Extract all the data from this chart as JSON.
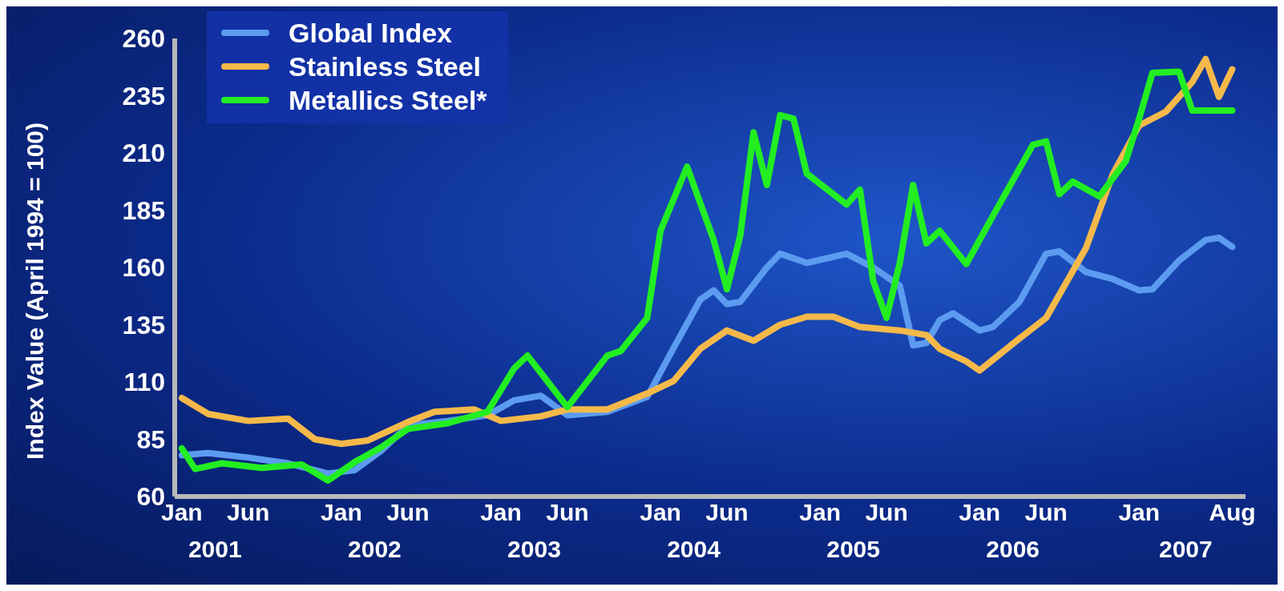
{
  "chart_data": {
    "type": "line",
    "ylabel": "Index Value (April 1994 = 100)",
    "xlim": [
      "2000-12-15",
      "2007-09"
    ],
    "xticks": [
      {
        "value": "2001-01",
        "label": "Jan"
      },
      {
        "value": "2001-06",
        "label": "Jun"
      },
      {
        "value": "2002-01",
        "label": "Jan"
      },
      {
        "value": "2002-06",
        "label": "Jun"
      },
      {
        "value": "2003-01",
        "label": "Jan"
      },
      {
        "value": "2003-06",
        "label": "Jun"
      },
      {
        "value": "2004-01",
        "label": "Jan"
      },
      {
        "value": "2004-06",
        "label": "Jun"
      },
      {
        "value": "2005-01",
        "label": "Jan"
      },
      {
        "value": "2005-06",
        "label": "Jun"
      },
      {
        "value": "2006-01",
        "label": "Jan"
      },
      {
        "value": "2006-06",
        "label": "Jun"
      },
      {
        "value": "2007-01",
        "label": "Jan"
      },
      {
        "value": "2007-08",
        "label": "Aug"
      }
    ],
    "annotations": [
      "2001",
      "2002",
      "2003",
      "2004",
      "2005",
      "2006",
      "2007"
    ],
    "ylim": [
      60,
      260
    ],
    "yticks": [
      60,
      85,
      110,
      135,
      160,
      185,
      210,
      235,
      260
    ],
    "grid": false,
    "legend": "top left",
    "marker": "none",
    "line_style": "solid",
    "series": [
      {
        "name": "Global Index",
        "color": "#5c9cf0",
        "x": [
          "2001-01",
          "2001-03",
          "2001-06",
          "2001-09",
          "2001-12",
          "2002-02",
          "2002-04",
          "2002-06",
          "2002-09",
          "2002-12",
          "2003-02",
          "2003-04",
          "2003-06",
          "2003-09",
          "2003-12",
          "2004-02",
          "2004-04",
          "2004-05",
          "2004-06",
          "2004-07",
          "2004-09",
          "2004-10",
          "2004-12",
          "2005-03",
          "2005-05",
          "2005-07",
          "2005-08",
          "2005-09",
          "2005-10",
          "2005-11",
          "2006-01",
          "2006-02",
          "2006-04",
          "2006-06",
          "2006-07",
          "2006-09",
          "2006-11",
          "2007-01",
          "2007-02",
          "2007-04",
          "2007-06",
          "2007-07",
          "2007-08"
        ],
        "values": [
          78,
          79,
          77,
          74.5,
          70,
          71.5,
          80,
          91,
          93,
          95.5,
          102,
          104,
          95.5,
          97,
          103.5,
          125,
          146,
          150,
          144,
          145,
          160,
          166,
          162,
          166,
          160,
          152,
          126,
          127,
          137,
          140,
          132.5,
          134,
          145,
          166,
          167,
          158,
          155,
          150,
          150.5,
          163,
          172,
          173,
          169
        ]
      },
      {
        "name": "Stainless Steel",
        "color": "#f5b94a",
        "x": [
          "2001-01",
          "2001-03",
          "2001-06",
          "2001-09",
          "2001-11",
          "2002-01",
          "2002-03",
          "2002-06",
          "2002-08",
          "2002-11",
          "2003-01",
          "2003-04",
          "2003-06",
          "2003-09",
          "2003-12",
          "2004-02",
          "2004-04",
          "2004-06",
          "2004-08",
          "2004-10",
          "2004-12",
          "2005-02",
          "2005-04",
          "2005-07",
          "2005-09",
          "2005-10",
          "2005-12",
          "2006-01",
          "2006-04",
          "2006-06",
          "2006-09",
          "2006-11",
          "2007-01",
          "2007-03",
          "2007-05",
          "2007-06",
          "2007-07",
          "2007-08"
        ],
        "values": [
          103,
          96,
          93,
          94,
          85,
          83,
          84.5,
          92.5,
          97,
          98,
          93,
          95,
          98,
          98,
          105,
          110.5,
          124.5,
          132.5,
          128,
          135,
          138.5,
          138.5,
          134,
          132.5,
          130.5,
          124.5,
          119,
          115,
          129,
          138,
          168.5,
          200.5,
          222,
          228,
          241,
          251,
          234.5,
          246.5
        ]
      },
      {
        "name": "Metallics Steel*",
        "color": "#22ee22",
        "x": [
          "2001-01",
          "2001-02",
          "2001-04",
          "2001-07",
          "2001-10",
          "2001-12",
          "2002-02",
          "2002-04",
          "2002-06",
          "2002-09",
          "2002-12",
          "2003-02",
          "2003-03",
          "2003-04",
          "2003-06",
          "2003-09",
          "2003-10",
          "2003-12",
          "2004-01",
          "2004-03",
          "2004-05",
          "2004-06",
          "2004-07",
          "2004-08",
          "2004-09",
          "2004-10",
          "2004-11",
          "2004-12",
          "2005-03",
          "2005-04",
          "2005-05",
          "2005-06",
          "2005-07",
          "2005-08",
          "2005-09",
          "2005-10",
          "2005-12",
          "2006-02",
          "2006-05",
          "2006-06",
          "2006-07",
          "2006-08",
          "2006-10",
          "2006-12",
          "2007-01",
          "2007-02",
          "2007-04",
          "2007-05",
          "2007-08"
        ],
        "values": [
          81,
          72,
          74.5,
          72.5,
          74,
          67,
          75,
          81.5,
          89.5,
          92,
          97,
          116,
          121.5,
          114,
          99,
          121.5,
          123.5,
          138,
          176,
          204,
          172,
          150.5,
          174,
          219,
          196,
          226.5,
          225,
          201,
          187.5,
          194,
          154,
          138,
          162,
          196,
          170.5,
          176,
          161.5,
          182.5,
          213.5,
          215,
          192,
          197.5,
          191,
          206.5,
          225,
          245,
          245.5,
          228.5,
          228.5
        ]
      }
    ]
  }
}
